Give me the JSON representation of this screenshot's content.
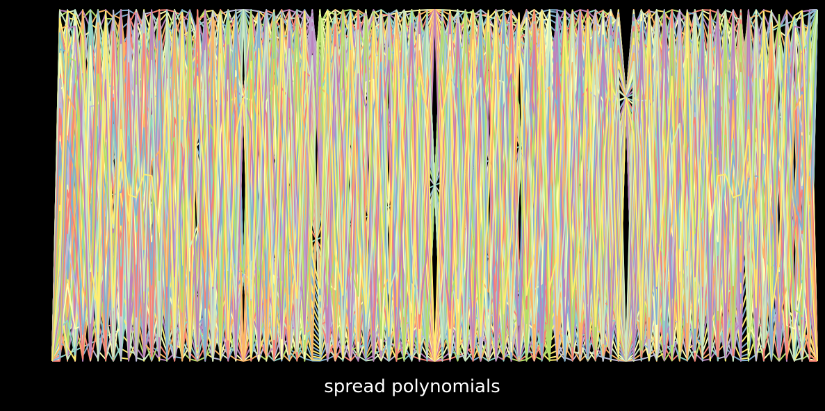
{
  "chart_data": {
    "type": "line",
    "title": "",
    "xlabel": "spread polynomials",
    "ylabel": "",
    "description": "Curves y = sin^2(n * arcsin(sqrt(x))) for n = 1..100 over x in [0, 1]",
    "series_generator": {
      "n_start": 1,
      "n_end": 100
    },
    "xlim": [
      0,
      1
    ],
    "ylim": [
      0,
      1
    ],
    "grid": false,
    "axes_visible": false,
    "legend": "none",
    "palette": [
      "#8dd3c7",
      "#feffb3",
      "#bfbbd9",
      "#fa8174",
      "#81b1d2",
      "#fdb462",
      "#b3de69",
      "#bc82bd",
      "#ccebc4",
      "#ffed6f"
    ],
    "background": "#000000",
    "text_color": "#ffffff"
  }
}
